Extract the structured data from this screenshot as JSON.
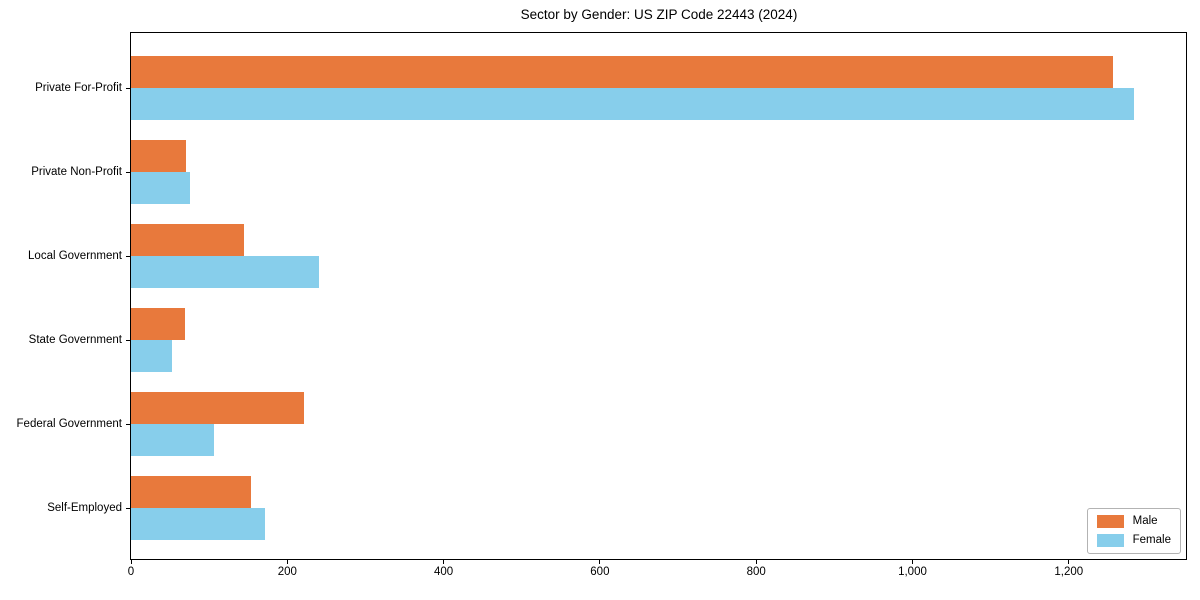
{
  "chart_data": {
    "type": "bar",
    "orientation": "horizontal",
    "title": "Sector by Gender: US ZIP Code 22443 (2024)",
    "categories": [
      "Private For-Profit",
      "Private Non-Profit",
      "Local Government",
      "State Government",
      "Federal Government",
      "Self-Employed"
    ],
    "series": [
      {
        "name": "Male",
        "color": "#E8793C",
        "values": [
          1257,
          71,
          145,
          69,
          221,
          154
        ]
      },
      {
        "name": "Female",
        "color": "#87CEEB",
        "values": [
          1284,
          75,
          240,
          53,
          106,
          172
        ]
      }
    ],
    "xlabel": "",
    "ylabel": "",
    "xlim": [
      0,
      1350
    ],
    "x_ticks": [
      {
        "value": 0,
        "label": "0"
      },
      {
        "value": 200,
        "label": "200"
      },
      {
        "value": 400,
        "label": "400"
      },
      {
        "value": 600,
        "label": "600"
      },
      {
        "value": 800,
        "label": "800"
      },
      {
        "value": 1000,
        "label": "1,000"
      },
      {
        "value": 1200,
        "label": "1,200"
      }
    ],
    "grid": false,
    "legend_position": "lower right",
    "background": "#ffffff",
    "spine_color": "#000000"
  }
}
